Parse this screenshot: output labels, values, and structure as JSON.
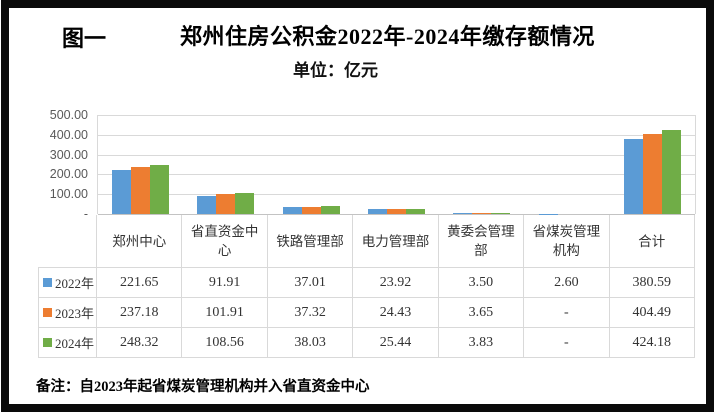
{
  "figure_label": "图一",
  "title": "郑州住房公积金2022年-2024年缴存额情况",
  "subtitle": "单位：亿元",
  "note": "备注：自2023年起省煤炭管理机构并入省直资金中心",
  "palette": {
    "series_2022": "#5B9BD5",
    "series_2023": "#ED7D31",
    "series_2024": "#70AD47",
    "gridline": "#D9D9D9",
    "axis_text": "#595959",
    "frame": "#0a0a0a"
  },
  "chart_data": {
    "type": "bar",
    "title": "郑州住房公积金2022年-2024年缴存额情况",
    "unit_label": "单位：亿元",
    "categories": [
      "郑州中心",
      "省直资金中心",
      "铁路管理部",
      "电力管理部",
      "黄委会管理部",
      "省煤炭管理机构",
      "合计"
    ],
    "series": [
      {
        "name": "2022年",
        "color": "#5B9BD5",
        "values": [
          221.65,
          91.91,
          37.01,
          23.92,
          3.5,
          2.6,
          380.59
        ]
      },
      {
        "name": "2023年",
        "color": "#ED7D31",
        "values": [
          237.18,
          101.91,
          37.32,
          24.43,
          3.65,
          null,
          404.49
        ]
      },
      {
        "name": "2024年",
        "color": "#70AD47",
        "values": [
          248.32,
          108.56,
          38.03,
          25.44,
          3.83,
          null,
          424.18
        ]
      }
    ],
    "ylim": [
      0,
      500
    ],
    "y_ticks": [
      "500.00",
      "400.00",
      "300.00",
      "200.00",
      "100.00",
      "-"
    ],
    "grid": "horizontal",
    "legend_position": "data-table-left"
  },
  "table": {
    "headers": [
      "郑州中心",
      "省直资金中心",
      "铁路管理部",
      "电力管理部",
      "黄委会管理部",
      "省煤炭管理机构",
      "合计"
    ],
    "rows": [
      {
        "legend": "2022年",
        "color": "#5B9BD5",
        "cells": [
          "221.65",
          "91.91",
          "37.01",
          "23.92",
          "3.50",
          "2.60",
          "380.59"
        ]
      },
      {
        "legend": "2023年",
        "color": "#ED7D31",
        "cells": [
          "237.18",
          "101.91",
          "37.32",
          "24.43",
          "3.65",
          "-",
          "404.49"
        ]
      },
      {
        "legend": "2024年",
        "color": "#70AD47",
        "cells": [
          "248.32",
          "108.56",
          "38.03",
          "25.44",
          "3.83",
          "-",
          "424.18"
        ]
      }
    ]
  }
}
